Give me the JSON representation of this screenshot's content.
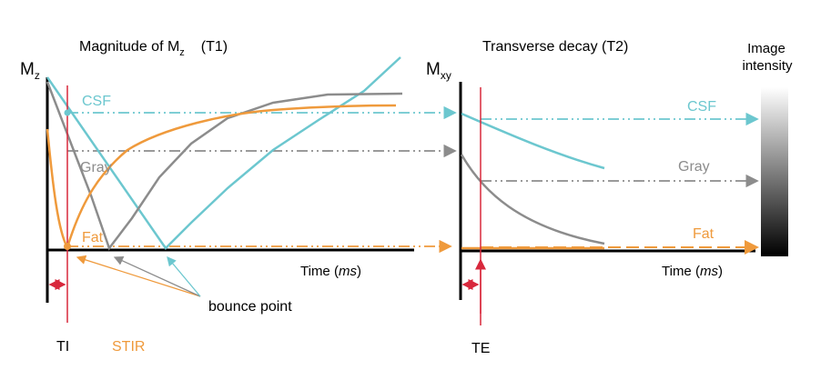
{
  "left_panel": {
    "title_prefix": "Magnitude of M",
    "title_sub": "z",
    "title_suffix": "(T1)",
    "axis_y_main": "M",
    "axis_y_sub": "z",
    "axis_x_prefix": "Time  (",
    "axis_x_unit": "ms",
    "axis_x_suffix": ")",
    "label_csf": "CSF",
    "label_gray": "Gray",
    "label_fat": "Fat",
    "marker_ti": "TI",
    "marker_stir": "STIR",
    "annotation_bounce": "bounce point"
  },
  "right_panel": {
    "title": "Transverse decay (T2)",
    "axis_y_main": "M",
    "axis_y_sub": "xy",
    "axis_x_prefix": "Time (",
    "axis_x_unit": "ms",
    "axis_x_suffix": ")",
    "label_csf": "CSF",
    "label_gray": "Gray",
    "label_fat": "Fat",
    "marker_te": "TE"
  },
  "intensity_bar": {
    "label_line1": "Image",
    "label_line2": "intensity"
  },
  "colors": {
    "csf": "#6cc7cf",
    "gray": "#8c8c8c",
    "fat": "#ef9a3c",
    "marker": "#d8283c",
    "axis": "#000000"
  }
}
